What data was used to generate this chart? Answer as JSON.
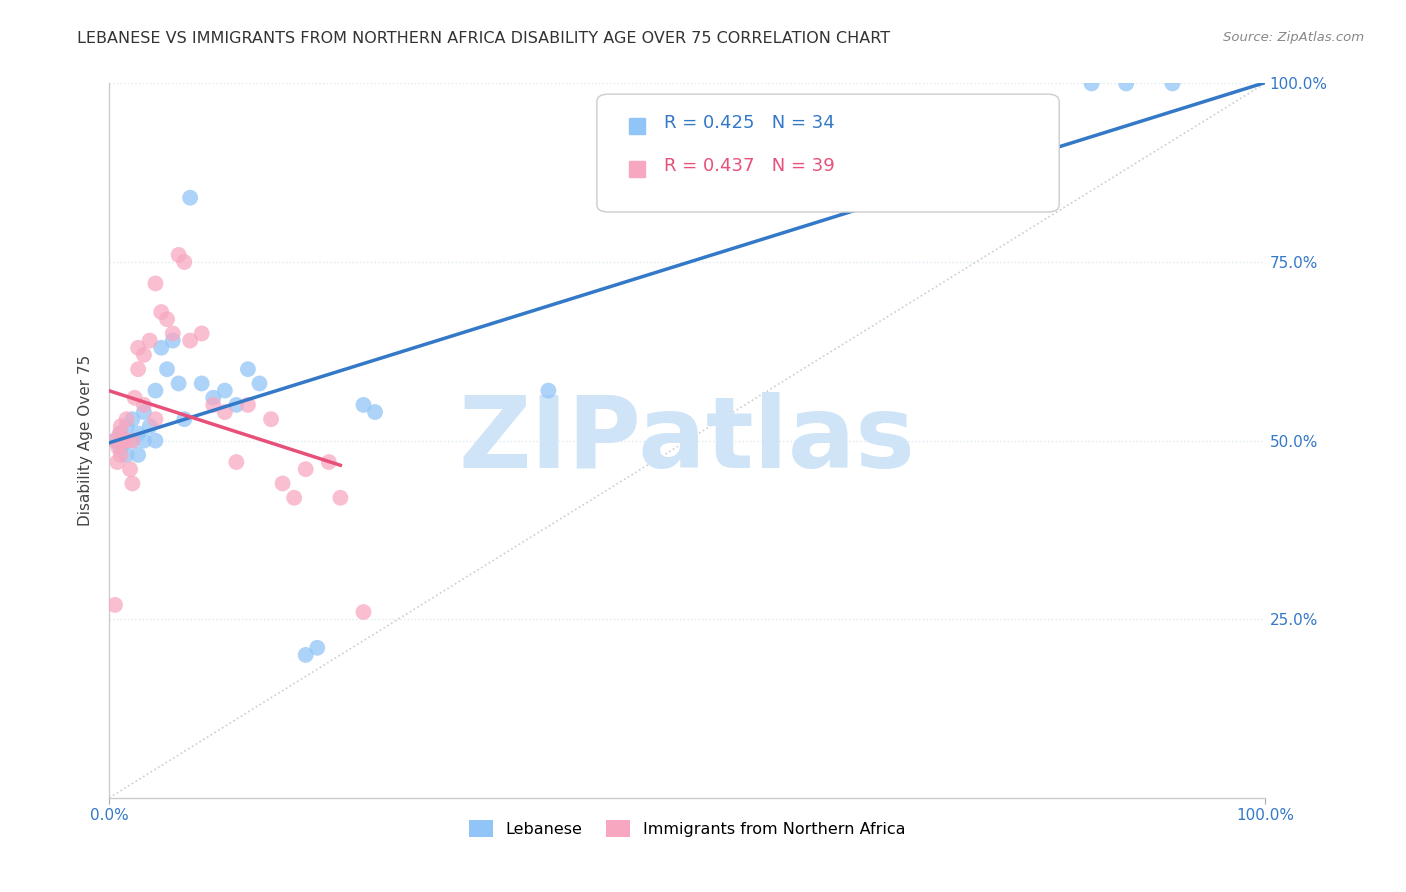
{
  "title": "LEBANESE VS IMMIGRANTS FROM NORTHERN AFRICA DISABILITY AGE OVER 75 CORRELATION CHART",
  "source": "Source: ZipAtlas.com",
  "ylabel": "Disability Age Over 75",
  "watermark_text": "ZIPatlas",
  "lebanese_x": [
    0.005,
    0.01,
    0.01,
    0.015,
    0.015,
    0.02,
    0.02,
    0.025,
    0.025,
    0.03,
    0.03,
    0.035,
    0.04,
    0.04,
    0.045,
    0.05,
    0.055,
    0.06,
    0.065,
    0.07,
    0.08,
    0.09,
    0.1,
    0.11,
    0.12,
    0.13,
    0.17,
    0.18,
    0.22,
    0.23,
    0.38,
    0.85,
    0.88,
    0.92
  ],
  "lebanese_y": [
    0.5,
    0.49,
    0.51,
    0.48,
    0.52,
    0.5,
    0.53,
    0.48,
    0.51,
    0.5,
    0.54,
    0.52,
    0.5,
    0.57,
    0.63,
    0.6,
    0.64,
    0.58,
    0.53,
    0.84,
    0.58,
    0.56,
    0.57,
    0.55,
    0.6,
    0.58,
    0.2,
    0.21,
    0.55,
    0.54,
    0.57,
    1.0,
    1.0,
    1.0
  ],
  "nafr_x": [
    0.005,
    0.007,
    0.008,
    0.009,
    0.01,
    0.01,
    0.012,
    0.015,
    0.015,
    0.018,
    0.02,
    0.02,
    0.022,
    0.025,
    0.025,
    0.03,
    0.03,
    0.035,
    0.04,
    0.04,
    0.045,
    0.05,
    0.055,
    0.06,
    0.065,
    0.07,
    0.08,
    0.09,
    0.1,
    0.11,
    0.12,
    0.14,
    0.15,
    0.16,
    0.17,
    0.19,
    0.2,
    0.22,
    0.005
  ],
  "nafr_y": [
    0.5,
    0.47,
    0.49,
    0.51,
    0.48,
    0.52,
    0.5,
    0.5,
    0.53,
    0.46,
    0.5,
    0.44,
    0.56,
    0.6,
    0.63,
    0.55,
    0.62,
    0.64,
    0.53,
    0.72,
    0.68,
    0.67,
    0.65,
    0.76,
    0.75,
    0.64,
    0.65,
    0.55,
    0.54,
    0.47,
    0.55,
    0.53,
    0.44,
    0.42,
    0.46,
    0.47,
    0.42,
    0.26,
    0.27
  ],
  "lebanese_R": 0.425,
  "lebanese_N": 34,
  "nafr_R": 0.437,
  "nafr_N": 39,
  "blue_scatter_color": "#92c5f7",
  "blue_line_color": "#3478c8",
  "pink_scatter_color": "#f7a8c0",
  "pink_line_color": "#e8507a",
  "diagonal_color": "#c8c8c8",
  "title_fontsize": 11.5,
  "source_fontsize": 9.5,
  "legend_fontsize": 13,
  "axis_label_fontsize": 11,
  "tick_fontsize": 11,
  "watermark_color": "#d0e4f8",
  "watermark_fontsize": 72,
  "grid_color": "#dde8f0",
  "ytick_positions": [
    0.25,
    0.5,
    0.75,
    1.0
  ],
  "right_ytick_labels": [
    "25.0%",
    "50.0%",
    "75.0%",
    "100.0%"
  ]
}
